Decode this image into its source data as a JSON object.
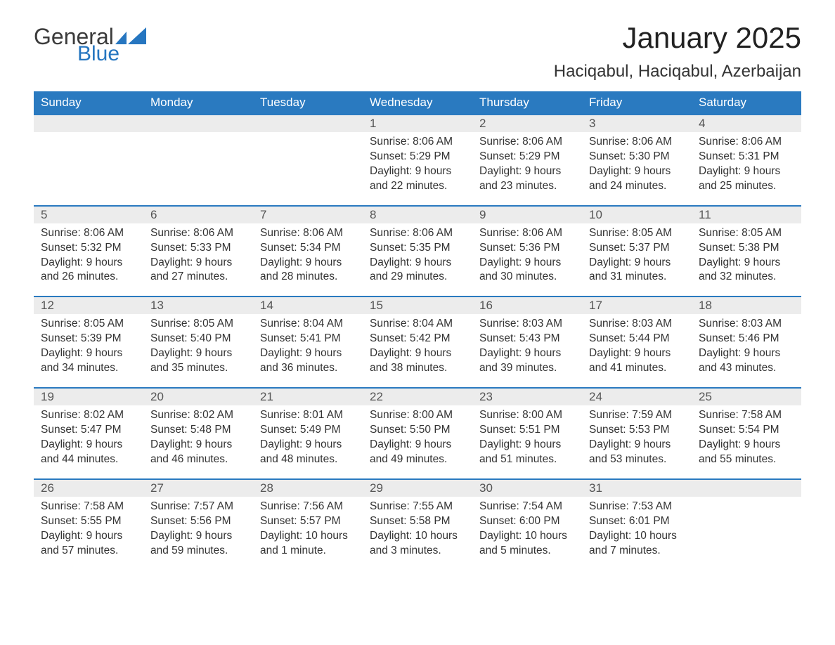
{
  "logo": {
    "word1": "General",
    "word2": "Blue",
    "accent_color": "#2676c0"
  },
  "header": {
    "month_title": "January 2025",
    "location": "Haciqabul, Haciqabul, Azerbaijan"
  },
  "calendar": {
    "type": "table",
    "header_bg": "#2a7ac0",
    "header_fg": "#ffffff",
    "daynum_bg": "#ececec",
    "rule_color": "#2a7ac0",
    "text_color": "#333333",
    "columns": [
      "Sunday",
      "Monday",
      "Tuesday",
      "Wednesday",
      "Thursday",
      "Friday",
      "Saturday"
    ],
    "weeks": [
      [
        null,
        null,
        null,
        {
          "n": "1",
          "sunrise": "8:06 AM",
          "sunset": "5:29 PM",
          "daylight": "9 hours and 22 minutes."
        },
        {
          "n": "2",
          "sunrise": "8:06 AM",
          "sunset": "5:29 PM",
          "daylight": "9 hours and 23 minutes."
        },
        {
          "n": "3",
          "sunrise": "8:06 AM",
          "sunset": "5:30 PM",
          "daylight": "9 hours and 24 minutes."
        },
        {
          "n": "4",
          "sunrise": "8:06 AM",
          "sunset": "5:31 PM",
          "daylight": "9 hours and 25 minutes."
        }
      ],
      [
        {
          "n": "5",
          "sunrise": "8:06 AM",
          "sunset": "5:32 PM",
          "daylight": "9 hours and 26 minutes."
        },
        {
          "n": "6",
          "sunrise": "8:06 AM",
          "sunset": "5:33 PM",
          "daylight": "9 hours and 27 minutes."
        },
        {
          "n": "7",
          "sunrise": "8:06 AM",
          "sunset": "5:34 PM",
          "daylight": "9 hours and 28 minutes."
        },
        {
          "n": "8",
          "sunrise": "8:06 AM",
          "sunset": "5:35 PM",
          "daylight": "9 hours and 29 minutes."
        },
        {
          "n": "9",
          "sunrise": "8:06 AM",
          "sunset": "5:36 PM",
          "daylight": "9 hours and 30 minutes."
        },
        {
          "n": "10",
          "sunrise": "8:05 AM",
          "sunset": "5:37 PM",
          "daylight": "9 hours and 31 minutes."
        },
        {
          "n": "11",
          "sunrise": "8:05 AM",
          "sunset": "5:38 PM",
          "daylight": "9 hours and 32 minutes."
        }
      ],
      [
        {
          "n": "12",
          "sunrise": "8:05 AM",
          "sunset": "5:39 PM",
          "daylight": "9 hours and 34 minutes."
        },
        {
          "n": "13",
          "sunrise": "8:05 AM",
          "sunset": "5:40 PM",
          "daylight": "9 hours and 35 minutes."
        },
        {
          "n": "14",
          "sunrise": "8:04 AM",
          "sunset": "5:41 PM",
          "daylight": "9 hours and 36 minutes."
        },
        {
          "n": "15",
          "sunrise": "8:04 AM",
          "sunset": "5:42 PM",
          "daylight": "9 hours and 38 minutes."
        },
        {
          "n": "16",
          "sunrise": "8:03 AM",
          "sunset": "5:43 PM",
          "daylight": "9 hours and 39 minutes."
        },
        {
          "n": "17",
          "sunrise": "8:03 AM",
          "sunset": "5:44 PM",
          "daylight": "9 hours and 41 minutes."
        },
        {
          "n": "18",
          "sunrise": "8:03 AM",
          "sunset": "5:46 PM",
          "daylight": "9 hours and 43 minutes."
        }
      ],
      [
        {
          "n": "19",
          "sunrise": "8:02 AM",
          "sunset": "5:47 PM",
          "daylight": "9 hours and 44 minutes."
        },
        {
          "n": "20",
          "sunrise": "8:02 AM",
          "sunset": "5:48 PM",
          "daylight": "9 hours and 46 minutes."
        },
        {
          "n": "21",
          "sunrise": "8:01 AM",
          "sunset": "5:49 PM",
          "daylight": "9 hours and 48 minutes."
        },
        {
          "n": "22",
          "sunrise": "8:00 AM",
          "sunset": "5:50 PM",
          "daylight": "9 hours and 49 minutes."
        },
        {
          "n": "23",
          "sunrise": "8:00 AM",
          "sunset": "5:51 PM",
          "daylight": "9 hours and 51 minutes."
        },
        {
          "n": "24",
          "sunrise": "7:59 AM",
          "sunset": "5:53 PM",
          "daylight": "9 hours and 53 minutes."
        },
        {
          "n": "25",
          "sunrise": "7:58 AM",
          "sunset": "5:54 PM",
          "daylight": "9 hours and 55 minutes."
        }
      ],
      [
        {
          "n": "26",
          "sunrise": "7:58 AM",
          "sunset": "5:55 PM",
          "daylight": "9 hours and 57 minutes."
        },
        {
          "n": "27",
          "sunrise": "7:57 AM",
          "sunset": "5:56 PM",
          "daylight": "9 hours and 59 minutes."
        },
        {
          "n": "28",
          "sunrise": "7:56 AM",
          "sunset": "5:57 PM",
          "daylight": "10 hours and 1 minute."
        },
        {
          "n": "29",
          "sunrise": "7:55 AM",
          "sunset": "5:58 PM",
          "daylight": "10 hours and 3 minutes."
        },
        {
          "n": "30",
          "sunrise": "7:54 AM",
          "sunset": "6:00 PM",
          "daylight": "10 hours and 5 minutes."
        },
        {
          "n": "31",
          "sunrise": "7:53 AM",
          "sunset": "6:01 PM",
          "daylight": "10 hours and 7 minutes."
        },
        null
      ]
    ]
  }
}
